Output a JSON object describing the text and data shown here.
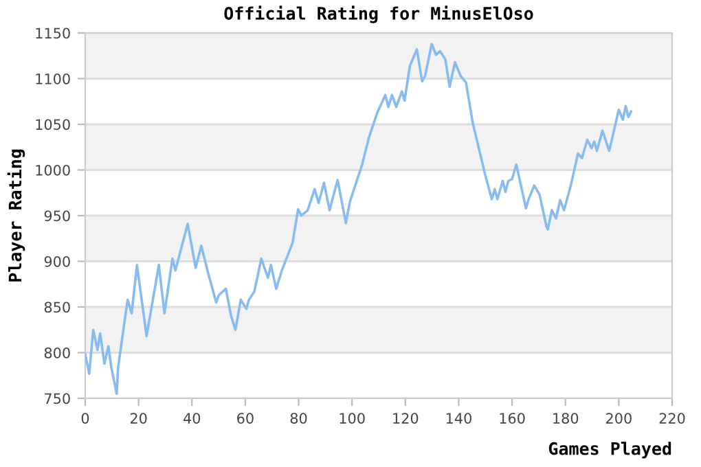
{
  "chart_data": {
    "type": "line",
    "title": "Official Rating for MinusElOso",
    "xlabel": "Games Played",
    "ylabel": "Player Rating",
    "xlim": [
      0,
      220
    ],
    "xticks": [
      0,
      20,
      40,
      60,
      80,
      100,
      120,
      140,
      160,
      180,
      200,
      220
    ],
    "ylim": [
      750,
      1150
    ],
    "yticks": [
      750,
      800,
      850,
      900,
      950,
      1000,
      1050,
      1100,
      1150
    ],
    "grid": "y",
    "legend": false,
    "marker": "none",
    "line_style": "solid",
    "bands": [
      {
        "axis": "y",
        "from": 800,
        "to": 850,
        "color": "#f2f2f2"
      },
      {
        "axis": "y",
        "from": 900,
        "to": 950,
        "color": "#f2f2f2"
      },
      {
        "axis": "y",
        "from": 1000,
        "to": 1050,
        "color": "#f2f2f2"
      },
      {
        "axis": "y",
        "from": 1100,
        "to": 1150,
        "color": "#f2f2f2"
      }
    ],
    "series": [
      {
        "color": "#88bbf0",
        "x": [
          0,
          1.5,
          3,
          4.6,
          5.6,
          7.2,
          8.7,
          9.7,
          11.8,
          12.3,
          14.3,
          15.9,
          17.4,
          19.4,
          23,
          27.6,
          29.7,
          32.7,
          33.8,
          38.4,
          41.4,
          43.5,
          46,
          49.1,
          50.1,
          52.7,
          54.7,
          56.3,
          58.3,
          60.4,
          61.4,
          63.4,
          66,
          68.5,
          69.6,
          71.6,
          73.7,
          77.7,
          79.8,
          81,
          83.4,
          86,
          87.5,
          89.5,
          91.6,
          94.6,
          97.7,
          99.2,
          103.8,
          106.4,
          109.5,
          112.5,
          113.6,
          115,
          116.6,
          118.7,
          119.7,
          121.7,
          124.3,
          126.3,
          127.4,
          129.9,
          131.5,
          133,
          135,
          136.6,
          138.6,
          140.7,
          142.7,
          145.3,
          149.9,
          152.4,
          153.5,
          154.5,
          156.5,
          157.5,
          158.6,
          160,
          161.6,
          165.2,
          166.2,
          168.3,
          170.3,
          172.9,
          173.4,
          174.9,
          176.5,
          178,
          179.5,
          182,
          184.7,
          186.2,
          188.2,
          189.8,
          190.8,
          191.8,
          193.9,
          196.4,
          197.4,
          200,
          201.5,
          202.6,
          203.6,
          204.6
        ],
        "values": [
          798,
          777,
          825,
          803,
          821,
          788,
          807,
          785,
          755,
          783,
          825,
          858,
          843,
          896,
          818,
          896,
          843,
          903,
          890,
          941,
          893,
          917,
          888,
          855,
          863,
          870,
          840,
          825,
          858,
          848,
          858,
          867,
          903,
          882,
          896,
          870,
          890,
          920,
          957,
          950,
          956,
          979,
          964,
          986,
          956,
          989,
          942,
          965,
          1006,
          1036,
          1063,
          1082,
          1069,
          1082,
          1069,
          1086,
          1076,
          1114,
          1132,
          1097,
          1103,
          1138,
          1126,
          1130,
          1121,
          1091,
          1118,
          1103,
          1096,
          1051,
          995,
          968,
          979,
          968,
          988,
          976,
          988,
          990,
          1006,
          958,
          968,
          983,
          973,
          938,
          935,
          956,
          947,
          967,
          956,
          983,
          1018,
          1013,
          1033,
          1024,
          1031,
          1021,
          1043,
          1021,
          1033,
          1066,
          1055,
          1070,
          1058,
          1064
        ]
      }
    ]
  }
}
